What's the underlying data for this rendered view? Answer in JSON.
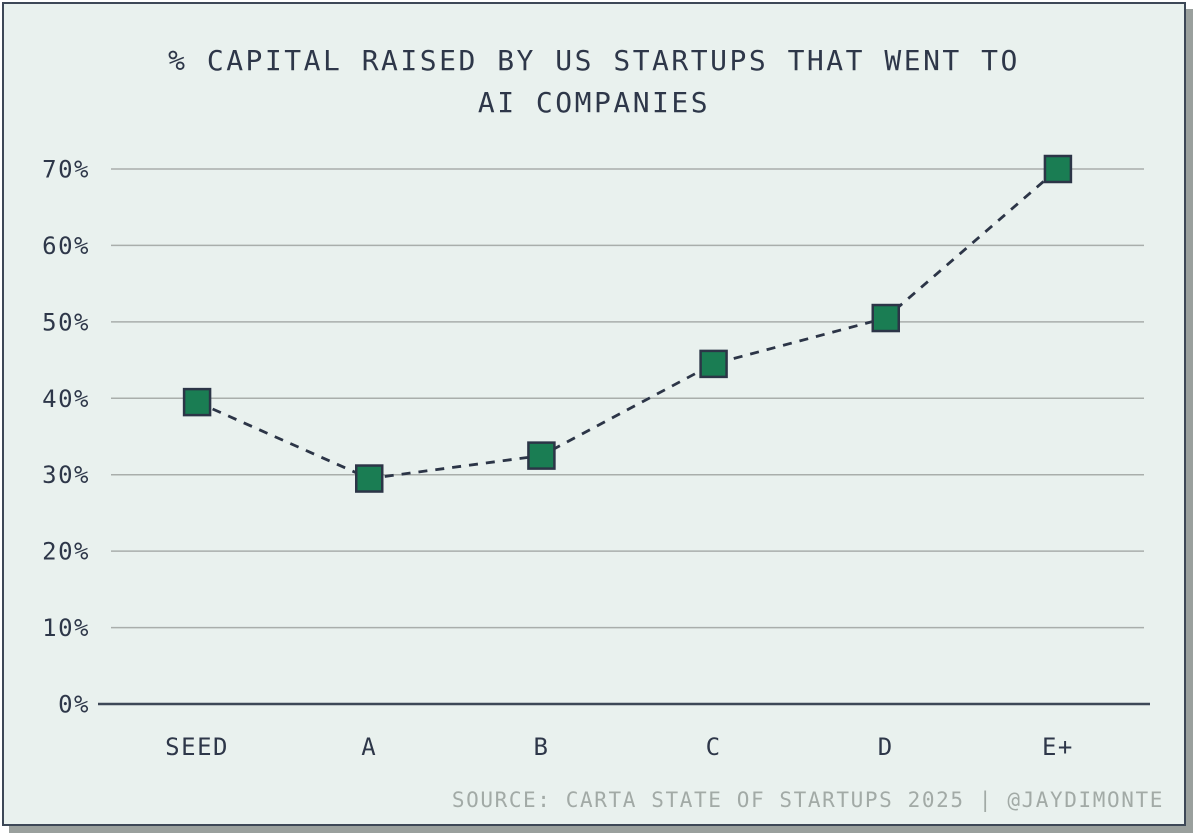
{
  "card": {
    "background": "#e9f1ee",
    "border_color": "#3d4857",
    "shadow_color": "#9aa09d"
  },
  "chart_data": {
    "type": "line",
    "title": "% CAPITAL RAISED BY US STARTUPS THAT WENT TO AI COMPANIES",
    "title_lines": [
      "% CAPITAL RAISED BY US STARTUPS THAT WENT TO",
      "AI COMPANIES"
    ],
    "categories": [
      "SEED",
      "A",
      "B",
      "C",
      "D",
      "E+"
    ],
    "values": [
      39.5,
      29.5,
      32.5,
      44.5,
      50.5,
      70
    ],
    "xlabel": "",
    "ylabel": "",
    "ylim": [
      0,
      70
    ],
    "ytick_step": 10,
    "ytick_labels": [
      "0%",
      "10%",
      "20%",
      "30%",
      "40%",
      "50%",
      "60%",
      "70%"
    ],
    "grid": "horizontal-only",
    "legend": "none",
    "line_style": "dashed",
    "marker": "square",
    "colors": {
      "marker_fill": "#1a7d53",
      "line": "#2c3547",
      "grid": "#a9aeab",
      "axis": "#3d4857",
      "text": "#2e3749",
      "muted_text": "#a2aaa6"
    }
  },
  "footer": {
    "source": "SOURCE: CARTA STATE OF STARTUPS 2025 | @JAYDIMONTE"
  }
}
